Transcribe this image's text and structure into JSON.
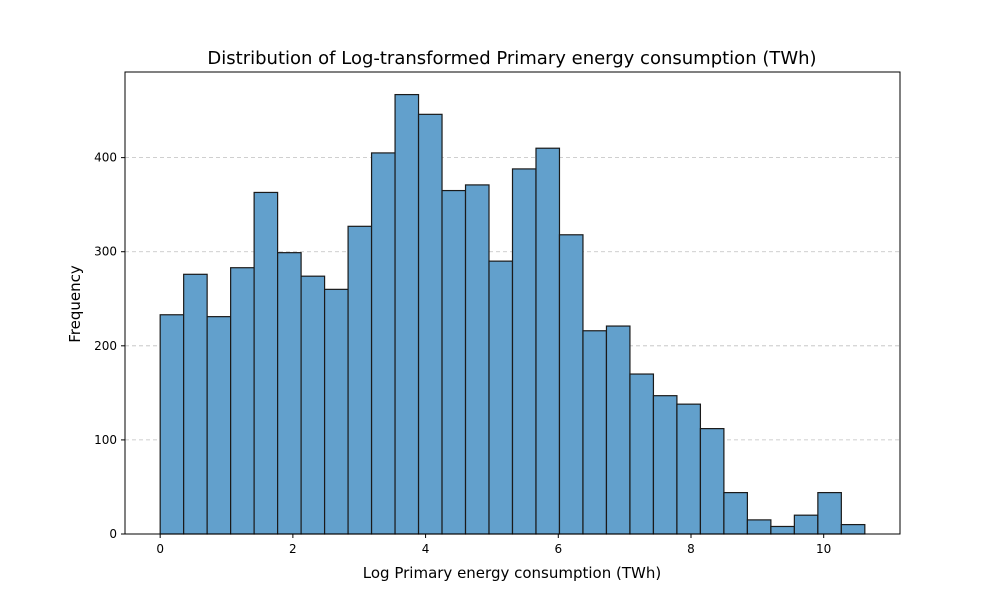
{
  "chart_data": {
    "type": "bar",
    "title": "Distribution of Log-transformed Primary energy consumption (TWh)",
    "xlabel": "Log Primary energy consumption (TWh)",
    "ylabel": "Frequency",
    "xlim": [
      -0.53,
      11.15
    ],
    "ylim": [
      0,
      491
    ],
    "xticks": [
      0,
      2,
      4,
      6,
      8,
      10
    ],
    "yticks": [
      0,
      100,
      200,
      300,
      400
    ],
    "grid": {
      "axis": "y",
      "style": "dashed"
    },
    "bar_color": "#62a0cc",
    "edge_color": "#1a1a1a",
    "bin_start": 0,
    "bin_width": 0.354,
    "values": [
      233,
      276,
      231,
      283,
      363,
      299,
      274,
      260,
      327,
      405,
      467,
      446,
      365,
      371,
      290,
      388,
      410,
      318,
      216,
      221,
      170,
      147,
      138,
      112,
      44,
      15,
      8,
      20,
      44,
      10
    ]
  }
}
